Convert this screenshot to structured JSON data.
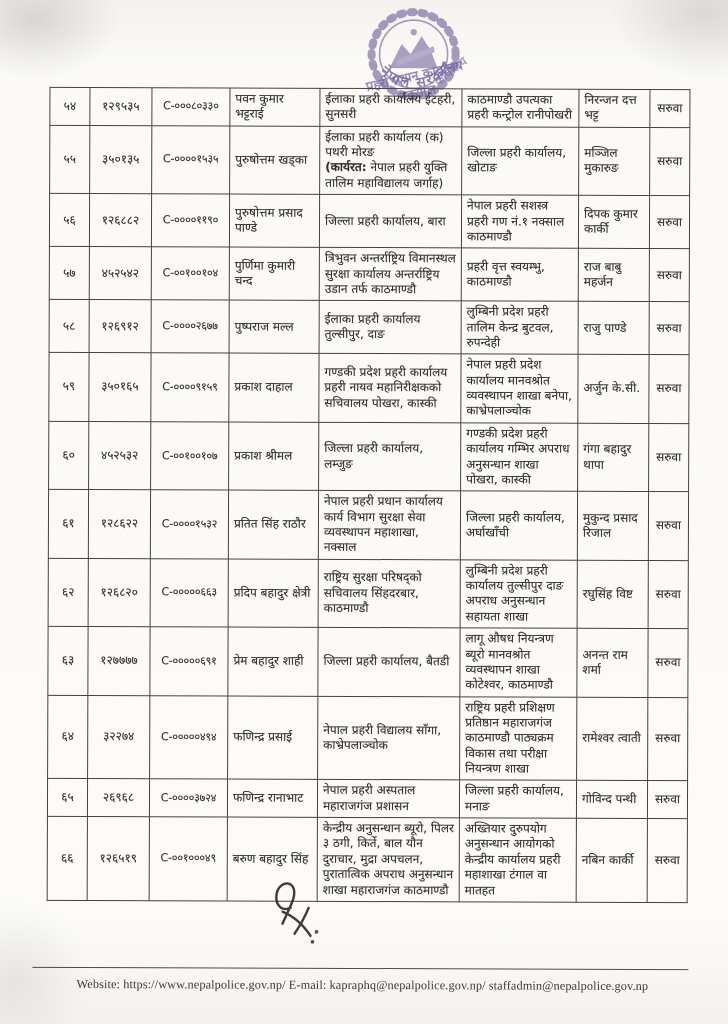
{
  "stamp": {
    "government_label": "नेपाल सरकार",
    "office_line": "प्रहरी प्रधान कार्यालय",
    "location_line": "नक्साल",
    "arc_fragment": "कार्यालय",
    "color": "#7d6fa3"
  },
  "table": {
    "action_label": "सरुवा",
    "rows": [
      {
        "sn": "५४",
        "regno": "१२९५३५",
        "code": "C-०००८०३३०",
        "name": "पवन कुमार भट्टराई",
        "from": "ईलाका प्रहरी कार्यालय ईटहरी, सुनसरी",
        "to": "काठमाण्डौ उपत्यका प्रहरी कन्ट्रोल रानीपोखरी",
        "recommender": "निरन्जन दत्त भट्ट",
        "action": "सरुवा"
      },
      {
        "sn": "५५",
        "regno": "३५०१३५",
        "code": "C-००००१५३५",
        "name": "पुरुषोत्तम खड्का",
        "from": "ईलाका प्रहरी कार्यालय (क) पथरी मोरङ",
        "from_note_label": "(कार्यरत:",
        "from_note": " नेपाल प्रहरी युक्ति तालिम महाविद्यालय जर्गाह)",
        "to": "जिल्ला प्रहरी कार्यालय, खोटाङ",
        "recommender": "मञ्जिल मुकारुङ",
        "action": "सरुवा"
      },
      {
        "sn": "५६",
        "regno": "१२६८८२",
        "code": "C-००००११९०",
        "name": "पुरुषोत्तम प्रसाद पाण्डे",
        "from": "जिल्ला प्रहरी कार्यालय, बारा",
        "to": "नेपाल प्रहरी सशस्त्र प्रहरी गण नं.१ नक्साल काठमाण्डौ",
        "recommender": "दिपक कुमार कार्की",
        "action": "सरुवा"
      },
      {
        "sn": "५७",
        "regno": "४५२५४२",
        "code": "C-००१००१०४",
        "name": "पुर्णिमा कुमारी चन्द",
        "from": "त्रिभुवन अन्तर्राष्ट्रिय विमानस्थल सुरक्षा कार्यालय अन्तर्राष्ट्रिय उडान तर्फ काठमाण्डौ",
        "to": "प्रहरी वृत्त स्वयम्भु, काठमाण्डौ",
        "recommender": "राज बाबु महर्जन",
        "action": "सरुवा"
      },
      {
        "sn": "५८",
        "regno": "१२६९१२",
        "code": "C-००००२६७७",
        "name": "पुष्पराज मल्ल",
        "from": "ईलाका प्रहरी कार्यालय तुल्सीपुर, दाङ",
        "to": "लुम्बिनी प्रदेश प्रहरी तालिम केन्द्र बुटवल, रुपन्देही",
        "recommender": "राजु पाण्डे",
        "action": "सरुवा"
      },
      {
        "sn": "५९",
        "regno": "३५०१६५",
        "code": "C-००००९१५९",
        "name": "प्रकाश दाहाल",
        "from": "गण्डकी प्रदेश प्रहरी कार्यालय प्रहरी नायव महानिरीक्षकको सचिवालय पोखरा, कास्की",
        "to": "नेपाल प्रहरी प्रदेश कार्यालय मानवश्रोत व्यवस्थापन शाखा  बनेपा, काभ्रेपलाञ्चोक",
        "recommender": "अर्जुन के.सी.",
        "action": "सरुवा"
      },
      {
        "sn": "६०",
        "regno": "४५२५३२",
        "code": "C-००१००१०७",
        "name": "प्रकाश श्रीमल",
        "from": "जिल्ला प्रहरी कार्यालय, लम्जुङ",
        "to": "गण्डकी प्रदेश प्रहरी कार्यालय गम्भिर अपराध अनुसन्धान शाखा पोखरा, कास्की",
        "recommender": "गंगा बहादुर थापा",
        "action": "सरुवा"
      },
      {
        "sn": "६१",
        "regno": "१२८६२२",
        "code": "C-००००१५३२",
        "name": "प्रतित सिंह राठौर",
        "from": "नेपाल प्रहरी प्रधान कार्यालय कार्य विभाग सुरक्षा सेवा व्यवस्थापन महाशाखा, नक्साल",
        "to": "जिल्ला प्रहरी कार्यालय, अर्घाखाँची",
        "recommender": "मुकुन्द प्रसाद रिजाल",
        "action": "सरुवा"
      },
      {
        "sn": "६२",
        "regno": "१२६८२०",
        "code": "C-०००००६६३",
        "name": "प्रदिप बहादुर क्षेत्री",
        "from": "राष्ट्रिय सुरक्षा परिषद्को सचिवालय सिंहदरबार, काठमाण्डौ",
        "to": "लुम्बिनी प्रदेश प्रहरी कार्यालय तुल्सीपुर दाङ अपराध अनुसन्धान सहायता शाखा",
        "recommender": "रघुसिंह विष्ट",
        "action": "सरुवा"
      },
      {
        "sn": "६३",
        "regno": "१२७७७७",
        "code": "C-०००००६९१",
        "name": "प्रेम बहादुर शाही",
        "from": "जिल्ला प्रहरी कार्यालय, बैतडी",
        "to": "लागू औषध नियन्त्रण ब्यूरो मानवश्रोत व्यवस्थापन शाखा कोटेश्वर, काठमाण्डौ",
        "recommender": "अनन्त राम शर्मा",
        "action": "सरुवा"
      },
      {
        "sn": "६४",
        "regno": "३२२७४",
        "code": "C-०००००४९४",
        "name": "फणिन्द्र प्रसाई",
        "from": "नेपाल प्रहरी विद्यालय साँगा, काभ्रेपलाञ्चोक",
        "to": "राष्ट्रिय प्रहरी प्रशिक्षण प्रतिष्ठान महाराजगंज काठमाण्डौ पाठ्यक्रम विकास तथा परीक्षा नियन्त्रण शाखा",
        "recommender": "रामेश्वर त्वाती",
        "action": "सरुवा"
      },
      {
        "sn": "६५",
        "regno": "२६९६८",
        "code": "C-००००३७२४",
        "name": "फणिन्द्र रानाभाट",
        "from": "नेपाल प्रहरी अस्पताल महाराजगंज प्रशासन",
        "to": "जिल्ला प्रहरी कार्यालय, मनाङ",
        "recommender": "गोविन्द पन्थी",
        "action": "सरुवा"
      },
      {
        "sn": "६६",
        "regno": "१२६५१९",
        "code": "C-००१०००४९",
        "name": "बरुण बहादुर सिंह",
        "from": "केन्द्रीय अनुसन्धान ब्यूरो, पिलर ३ ठगी, किर्ते, बाल यौन दुराचार, मुद्रा अपचलन, पुरातात्विक अपराध अनुसन्धान शाखा महाराजगंज काठमाण्डौ",
        "to": "अख्तियार दुरुपयोग अनुसन्धान आयोगको केन्द्रीय कार्यालय प्रहरी महाशाखा टंगाल वा मातहत",
        "recommender": "नबिन कार्की",
        "action": "सरुवा"
      }
    ]
  },
  "footer": {
    "text": "Website: https://www.nepalpolice.gov.np/ E-mail: kapraphq@nepalpolice.gov.np/ staffadmin@nepalpolice.gov.np"
  }
}
